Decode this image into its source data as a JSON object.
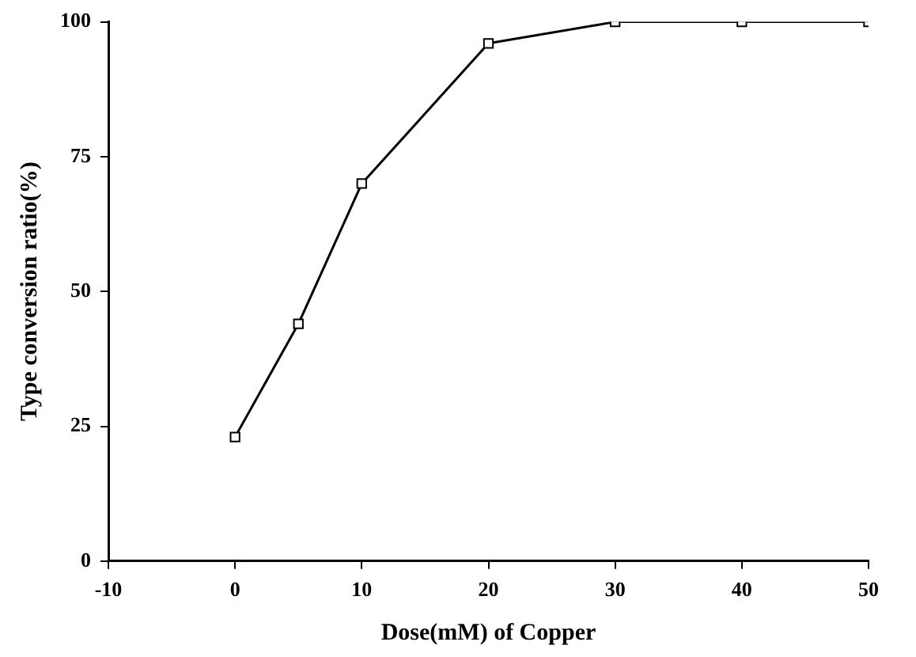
{
  "chart_data": {
    "type": "line",
    "xlabel": "Dose(mM) of Copper",
    "ylabel": "Type conversion ratio(%)",
    "x": [
      0,
      5,
      10,
      20,
      30,
      40,
      50
    ],
    "series": [
      {
        "color": "#000000",
        "values": [
          23,
          44,
          70,
          96,
          100,
          100,
          100
        ]
      }
    ],
    "xlim": [
      -10,
      50
    ],
    "xticks": [
      -10,
      0,
      10,
      20,
      30,
      40,
      50
    ],
    "ylim": [
      0,
      100
    ],
    "yticks": [
      0,
      25,
      50,
      75,
      100
    ],
    "grid": false,
    "legend": false,
    "marker": "square",
    "line_style": "solid"
  }
}
